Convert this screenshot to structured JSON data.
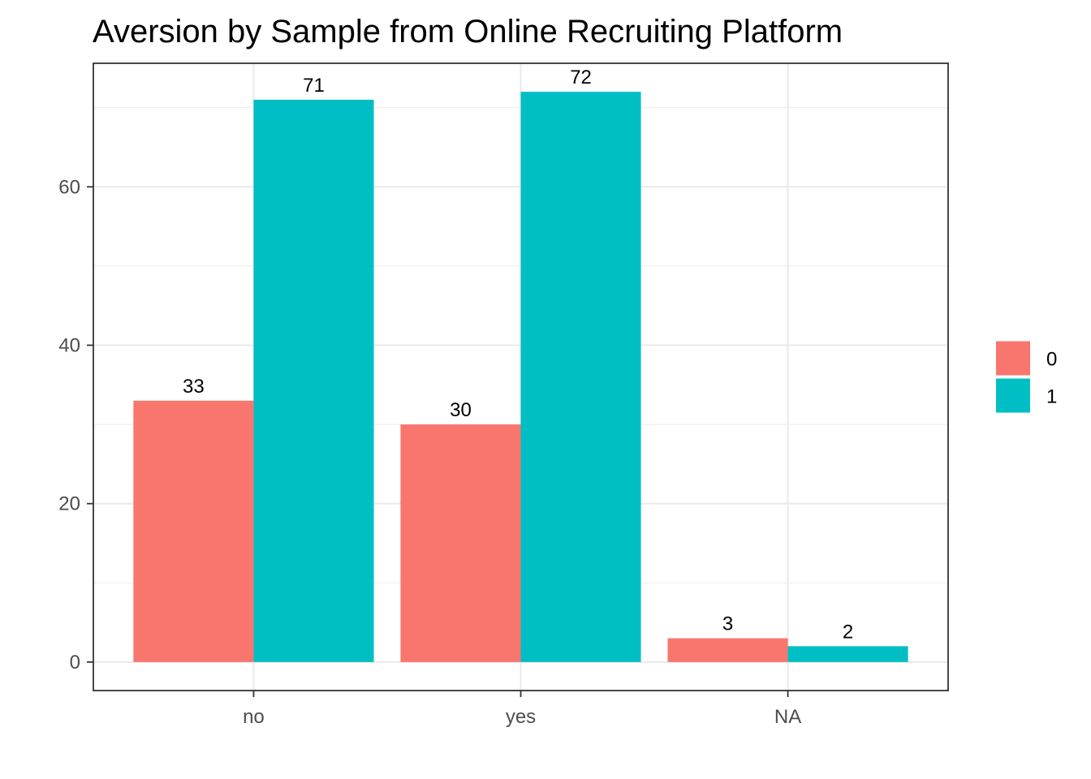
{
  "chart_data": {
    "type": "bar",
    "title": "Aversion by Sample from Online Recruiting Platform",
    "xlabel": "",
    "ylabel": "",
    "categories": [
      "no",
      "yes",
      "NA"
    ],
    "series": [
      {
        "name": "0",
        "color": "#F8766D",
        "values": [
          33,
          30,
          3
        ]
      },
      {
        "name": "1",
        "color": "#00BFC4",
        "values": [
          71,
          72,
          2
        ]
      }
    ],
    "ylim": [
      -3.6,
      75.6
    ],
    "yticks": [
      0,
      20,
      40,
      60
    ],
    "ytick_labels": [
      "0",
      "20",
      "40",
      "60"
    ],
    "grid": true,
    "legend_position": "right",
    "data_labels": true
  }
}
